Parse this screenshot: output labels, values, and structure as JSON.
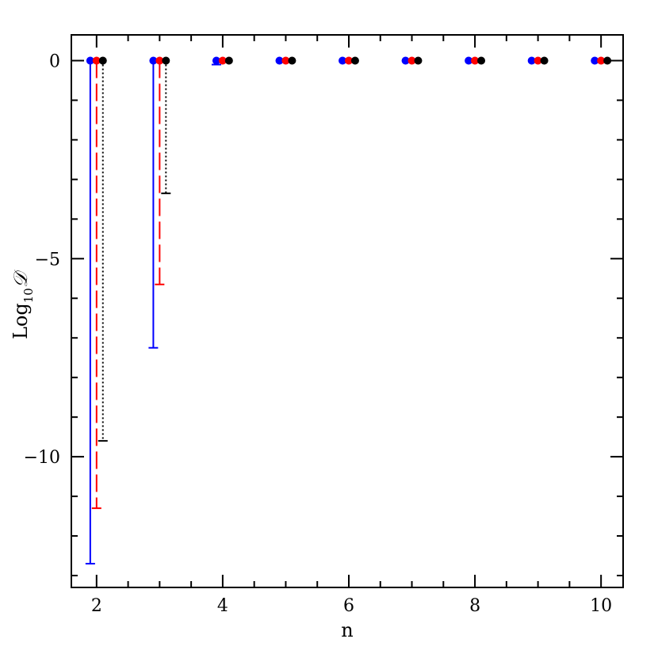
{
  "chart_data": {
    "type": "scatter",
    "title": "",
    "xlabel": "n",
    "ylabel": {
      "main": "Log",
      "subscript": "10",
      "symbol": "𝒟"
    },
    "xlim": [
      1.6,
      10.35
    ],
    "ylim": [
      -13.3,
      0.65
    ],
    "x_ticks": [
      2,
      4,
      6,
      8,
      10
    ],
    "x_tick_labels": [
      "2",
      "4",
      "6",
      "8",
      "10"
    ],
    "y_ticks": [
      0,
      -5,
      -10
    ],
    "y_tick_labels": [
      "0",
      "−5",
      "−10"
    ],
    "x_minor_step": 0.5,
    "y_minor_step": 1,
    "grid": false,
    "legend": "none",
    "series": [
      {
        "color": "#0000ff",
        "line_style": "solid",
        "x_offset": -0.1,
        "n": [
          2,
          3,
          4,
          5,
          6,
          7,
          8,
          9,
          10
        ],
        "y": [
          0,
          0,
          0,
          0,
          0,
          0,
          0,
          0,
          0
        ],
        "lower": [
          -12.7,
          -7.25,
          -0.1,
          0,
          0,
          0,
          0,
          0,
          0
        ]
      },
      {
        "color": "#ff0000",
        "line_style": "dashed",
        "x_offset": 0,
        "n": [
          2,
          3,
          4,
          5,
          6,
          7,
          8,
          9,
          10
        ],
        "y": [
          0,
          0,
          0,
          0,
          0,
          0,
          0,
          0,
          0
        ],
        "lower": [
          -11.3,
          -5.65,
          0,
          0,
          0,
          0,
          0,
          0,
          0
        ]
      },
      {
        "color": "#000000",
        "line_style": "dotted",
        "x_offset": 0.1,
        "n": [
          2,
          3,
          4,
          5,
          6,
          7,
          8,
          9,
          10
        ],
        "y": [
          0,
          0,
          0,
          0,
          0,
          0,
          0,
          0,
          0
        ],
        "lower": [
          -9.6,
          -3.35,
          0,
          0,
          0,
          0,
          0,
          0,
          0
        ]
      }
    ]
  }
}
